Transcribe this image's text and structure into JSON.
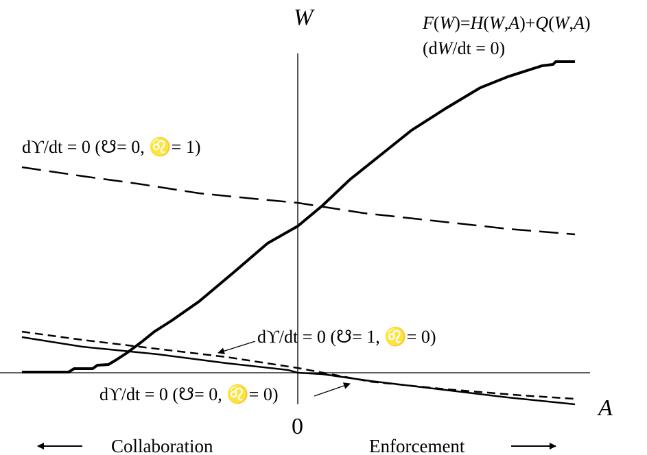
{
  "axes": {
    "y_label": "W",
    "x_label": "A",
    "origin_label": "0"
  },
  "curves": {
    "F": {
      "label_line1": "F(W)=H(W,A)+Q(W,A)",
      "label_line2": "(dW/dt = 0)",
      "style": "solid-thick"
    },
    "d10": {
      "label": "dϒ/dt = 0 (☋= 0, ♌= 1)",
      "style": "long-dash"
    },
    "d01": {
      "label": "dϒ/dt = 0 (☋= 1, ♌= 0)",
      "style": "short-dash"
    },
    "d00": {
      "label": "dϒ/dt = 0 (☋= 0, ♌= 0)",
      "style": "solid"
    }
  },
  "directions": {
    "left": "Collaboration",
    "right": "Enforcement"
  },
  "colors": {
    "ink": "#000000",
    "background": "#ffffff"
  }
}
